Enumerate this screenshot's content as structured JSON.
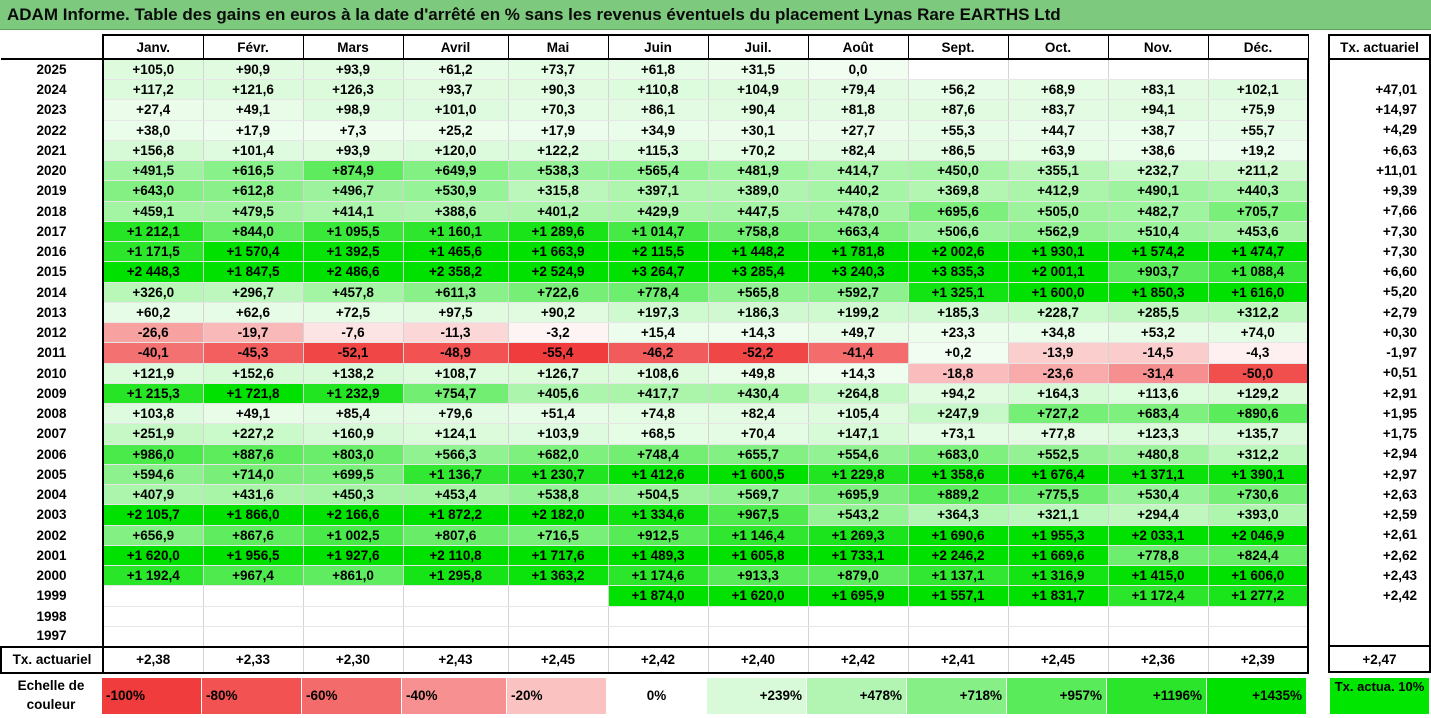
{
  "title": "ADAM Informe. Table des gains en euros à la date d'arrêté en % sans les revenus éventuels du placement Lynas Rare EARTHS Ltd",
  "months": [
    "Janv.",
    "Févr.",
    "Mars",
    "Avril",
    "Mai",
    "Juin",
    "Juil.",
    "Août",
    "Sept.",
    "Oct.",
    "Nov.",
    "Déc."
  ],
  "side_header": "Tx. actuariel",
  "footer_label": "Tx. actuariel",
  "rows": [
    {
      "year": "2025",
      "values": [
        "+105,0",
        "+90,9",
        "+93,9",
        "+61,2",
        "+73,7",
        "+61,8",
        "+31,5",
        "0,0",
        "",
        "",
        "",
        ""
      ],
      "actuariel": ""
    },
    {
      "year": "2024",
      "values": [
        "+117,2",
        "+121,6",
        "+126,3",
        "+93,7",
        "+90,3",
        "+110,8",
        "+104,9",
        "+79,4",
        "+56,2",
        "+68,9",
        "+83,1",
        "+102,1"
      ],
      "actuariel": "+47,01"
    },
    {
      "year": "2023",
      "values": [
        "+27,4",
        "+49,1",
        "+98,9",
        "+101,0",
        "+70,3",
        "+86,1",
        "+90,4",
        "+81,8",
        "+87,6",
        "+83,7",
        "+94,1",
        "+75,9"
      ],
      "actuariel": "+14,97"
    },
    {
      "year": "2022",
      "values": [
        "+38,0",
        "+17,9",
        "+7,3",
        "+25,2",
        "+17,9",
        "+34,9",
        "+30,1",
        "+27,7",
        "+55,3",
        "+44,7",
        "+38,7",
        "+55,7"
      ],
      "actuariel": "+4,29"
    },
    {
      "year": "2021",
      "values": [
        "+156,8",
        "+101,4",
        "+93,9",
        "+120,0",
        "+122,2",
        "+115,3",
        "+70,2",
        "+82,4",
        "+86,5",
        "+63,9",
        "+38,6",
        "+19,2"
      ],
      "actuariel": "+6,63"
    },
    {
      "year": "2020",
      "values": [
        "+491,5",
        "+616,5",
        "+874,9",
        "+649,9",
        "+538,3",
        "+565,4",
        "+481,9",
        "+414,7",
        "+450,0",
        "+355,1",
        "+232,7",
        "+211,2"
      ],
      "actuariel": "+11,01"
    },
    {
      "year": "2019",
      "values": [
        "+643,0",
        "+612,8",
        "+496,7",
        "+530,9",
        "+315,8",
        "+397,1",
        "+389,0",
        "+440,2",
        "+369,8",
        "+412,9",
        "+490,1",
        "+440,3"
      ],
      "actuariel": "+9,39"
    },
    {
      "year": "2018",
      "values": [
        "+459,1",
        "+479,5",
        "+414,1",
        "+388,6",
        "+401,2",
        "+429,9",
        "+447,5",
        "+478,0",
        "+695,6",
        "+505,0",
        "+482,7",
        "+705,7"
      ],
      "actuariel": "+7,66"
    },
    {
      "year": "2017",
      "values": [
        "+1 212,1",
        "+844,0",
        "+1 095,5",
        "+1 160,1",
        "+1 289,6",
        "+1 014,7",
        "+758,8",
        "+663,4",
        "+506,6",
        "+562,9",
        "+510,4",
        "+453,6"
      ],
      "actuariel": "+7,30"
    },
    {
      "year": "2016",
      "values": [
        "+1 171,5",
        "+1 570,4",
        "+1 392,5",
        "+1 465,6",
        "+1 663,9",
        "+2 115,5",
        "+1 448,2",
        "+1 781,8",
        "+2 002,6",
        "+1 930,1",
        "+1 574,2",
        "+1 474,7"
      ],
      "actuariel": "+7,30"
    },
    {
      "year": "2015",
      "values": [
        "+2 448,3",
        "+1 847,5",
        "+2 486,6",
        "+2 358,2",
        "+2 524,9",
        "+3 264,7",
        "+3 285,4",
        "+3 240,3",
        "+3 835,3",
        "+2 001,1",
        "+903,7",
        "+1 088,4"
      ],
      "actuariel": "+6,60"
    },
    {
      "year": "2014",
      "values": [
        "+326,0",
        "+296,7",
        "+457,8",
        "+611,3",
        "+722,6",
        "+778,4",
        "+565,8",
        "+592,7",
        "+1 325,1",
        "+1 600,0",
        "+1 850,3",
        "+1 616,0"
      ],
      "actuariel": "+5,20"
    },
    {
      "year": "2013",
      "values": [
        "+60,2",
        "+62,6",
        "+72,5",
        "+97,5",
        "+90,2",
        "+197,3",
        "+186,3",
        "+199,2",
        "+185,3",
        "+228,7",
        "+285,5",
        "+312,2"
      ],
      "actuariel": "+2,79"
    },
    {
      "year": "2012",
      "values": [
        "-26,6",
        "-19,7",
        "-7,6",
        "-11,3",
        "-3,2",
        "+15,4",
        "+14,3",
        "+49,7",
        "+23,3",
        "+34,8",
        "+53,2",
        "+74,0"
      ],
      "actuariel": "+0,30"
    },
    {
      "year": "2011",
      "values": [
        "-40,1",
        "-45,3",
        "-52,1",
        "-48,9",
        "-55,4",
        "-46,2",
        "-52,2",
        "-41,4",
        "+0,2",
        "-13,9",
        "-14,5",
        "-4,3"
      ],
      "actuariel": "-1,97"
    },
    {
      "year": "2010",
      "values": [
        "+121,9",
        "+152,6",
        "+138,2",
        "+108,7",
        "+126,7",
        "+108,6",
        "+49,8",
        "+14,3",
        "-18,8",
        "-23,6",
        "-31,4",
        "-50,0"
      ],
      "actuariel": "+0,51"
    },
    {
      "year": "2009",
      "values": [
        "+1 215,3",
        "+1 721,8",
        "+1 232,9",
        "+754,7",
        "+405,6",
        "+417,7",
        "+430,4",
        "+264,8",
        "+94,2",
        "+164,3",
        "+113,6",
        "+129,2"
      ],
      "actuariel": "+2,91"
    },
    {
      "year": "2008",
      "values": [
        "+103,8",
        "+49,1",
        "+85,4",
        "+79,6",
        "+51,4",
        "+74,8",
        "+82,4",
        "+105,4",
        "+247,9",
        "+727,2",
        "+683,4",
        "+890,6"
      ],
      "actuariel": "+1,95"
    },
    {
      "year": "2007",
      "values": [
        "+251,9",
        "+227,2",
        "+160,9",
        "+124,1",
        "+103,9",
        "+68,5",
        "+70,4",
        "+147,1",
        "+73,1",
        "+77,8",
        "+123,3",
        "+135,7"
      ],
      "actuariel": "+1,75"
    },
    {
      "year": "2006",
      "values": [
        "+986,0",
        "+887,6",
        "+803,0",
        "+566,3",
        "+682,0",
        "+748,4",
        "+655,7",
        "+554,6",
        "+683,0",
        "+552,5",
        "+480,8",
        "+312,2"
      ],
      "actuariel": "+2,94"
    },
    {
      "year": "2005",
      "values": [
        "+594,6",
        "+714,0",
        "+699,5",
        "+1 136,7",
        "+1 230,7",
        "+1 412,6",
        "+1 600,5",
        "+1 229,8",
        "+1 358,6",
        "+1 676,4",
        "+1 371,1",
        "+1 390,1"
      ],
      "actuariel": "+2,97"
    },
    {
      "year": "2004",
      "values": [
        "+407,9",
        "+431,6",
        "+450,3",
        "+453,4",
        "+538,8",
        "+504,5",
        "+569,7",
        "+695,9",
        "+889,2",
        "+775,5",
        "+530,4",
        "+730,6"
      ],
      "actuariel": "+2,63"
    },
    {
      "year": "2003",
      "values": [
        "+2 105,7",
        "+1 866,0",
        "+2 166,6",
        "+1 872,2",
        "+2 182,0",
        "+1 334,6",
        "+967,5",
        "+543,2",
        "+364,3",
        "+321,1",
        "+294,4",
        "+393,0"
      ],
      "actuariel": "+2,59"
    },
    {
      "year": "2002",
      "values": [
        "+656,9",
        "+867,6",
        "+1 002,5",
        "+807,6",
        "+716,5",
        "+912,5",
        "+1 146,4",
        "+1 269,3",
        "+1 690,6",
        "+1 955,3",
        "+2 033,1",
        "+2 046,9"
      ],
      "actuariel": "+2,61"
    },
    {
      "year": "2001",
      "values": [
        "+1 620,0",
        "+1 956,5",
        "+1 927,6",
        "+2 110,8",
        "+1 717,6",
        "+1 489,3",
        "+1 605,8",
        "+1 733,1",
        "+2 246,2",
        "+1 669,6",
        "+778,8",
        "+824,4"
      ],
      "actuariel": "+2,62"
    },
    {
      "year": "2000",
      "values": [
        "+1 192,4",
        "+967,4",
        "+861,0",
        "+1 295,8",
        "+1 363,2",
        "+1 174,6",
        "+913,3",
        "+879,0",
        "+1 137,1",
        "+1 316,9",
        "+1 415,0",
        "+1 606,0"
      ],
      "actuariel": "+2,43"
    },
    {
      "year": "1999",
      "values": [
        "",
        "",
        "",
        "",
        "",
        "+1 874,0",
        "+1 620,0",
        "+1 695,9",
        "+1 557,1",
        "+1 831,7",
        "+1 172,4",
        "+1 277,2"
      ],
      "actuariel": "+2,42"
    },
    {
      "year": "1998",
      "values": [
        "",
        "",
        "",
        "",
        "",
        "",
        "",
        "",
        "",
        "",
        "",
        ""
      ],
      "actuariel": ""
    },
    {
      "year": "1997",
      "values": [
        "",
        "",
        "",
        "",
        "",
        "",
        "",
        "",
        "",
        "",
        "",
        ""
      ],
      "actuariel": ""
    }
  ],
  "footer_values": [
    "+2,38",
    "+2,33",
    "+2,30",
    "+2,43",
    "+2,45",
    "+2,42",
    "+2,40",
    "+2,42",
    "+2,41",
    "+2,45",
    "+2,36",
    "+2,39"
  ],
  "footer_total": "+2,47",
  "legend": {
    "label": "Echelle de couleur",
    "cells": [
      {
        "text": "-100%",
        "color": "#f03c3c",
        "align": "left"
      },
      {
        "text": "-80%",
        "color": "#f25252",
        "align": "left"
      },
      {
        "text": "-60%",
        "color": "#f46b6b",
        "align": "left"
      },
      {
        "text": "-40%",
        "color": "#f79090",
        "align": "left"
      },
      {
        "text": "-20%",
        "color": "#fbc2c2",
        "align": "left"
      },
      {
        "text": "0%",
        "color": "#ffffff",
        "align": "center"
      },
      {
        "text": "+239%",
        "color": "#d9fad9",
        "align": "right"
      },
      {
        "text": "+478%",
        "color": "#b2f5b2",
        "align": "right"
      },
      {
        "text": "+718%",
        "color": "#86ef86",
        "align": "right"
      },
      {
        "text": "+957%",
        "color": "#5aeb5a",
        "align": "right"
      },
      {
        "text": "+1196%",
        "color": "#2be52b",
        "align": "right"
      },
      {
        "text": "+1435%",
        "color": "#00e100",
        "align": "right"
      }
    ],
    "actu_label": "Tx. actua. 10%",
    "actu_color": "#00e600"
  }
}
